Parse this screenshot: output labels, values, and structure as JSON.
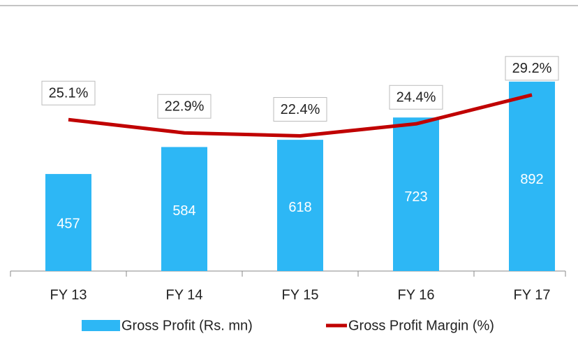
{
  "chart_data": {
    "type": "bar",
    "categories": [
      "FY 13",
      "FY 14",
      "FY 15",
      "FY 16",
      "FY 17"
    ],
    "series": [
      {
        "name": "Gross Profit (Rs. mn)",
        "type": "bar",
        "color": "#2db7f5",
        "values": [
          457,
          584,
          618,
          723,
          892
        ]
      },
      {
        "name": "Gross Profit Margin (%)",
        "type": "line",
        "axis": "y2",
        "color": "#c00000",
        "values": [
          25.1,
          22.9,
          22.4,
          24.4,
          29.2
        ],
        "value_labels": [
          "25.1%",
          "22.9%",
          "22.4%",
          "24.4%",
          "29.2%"
        ]
      }
    ],
    "ylim": [
      0,
      1250
    ],
    "y2lim": [
      0,
      44
    ],
    "legend": "bottom"
  }
}
